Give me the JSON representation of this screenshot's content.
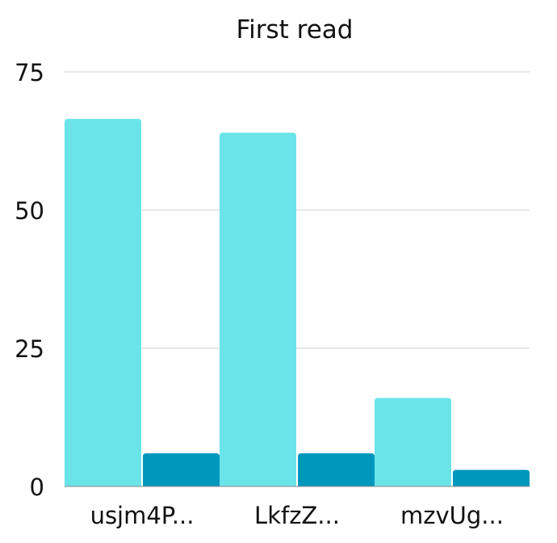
{
  "chart_data": {
    "type": "bar",
    "title": "First read",
    "xlabel": "",
    "ylabel": "",
    "categories": [
      "usjm4P...",
      "LkfzZ...",
      "mzvUg..."
    ],
    "series": [
      {
        "values": [
          66.5,
          64.0,
          16.0
        ],
        "color": "#6ae4e9"
      },
      {
        "values": [
          6.0,
          6.0,
          3.0
        ],
        "color": "#0097bd"
      }
    ],
    "ylim": [
      0,
      75
    ],
    "yticks": [
      0,
      25,
      50,
      75
    ],
    "grid": true,
    "legend": "none"
  }
}
